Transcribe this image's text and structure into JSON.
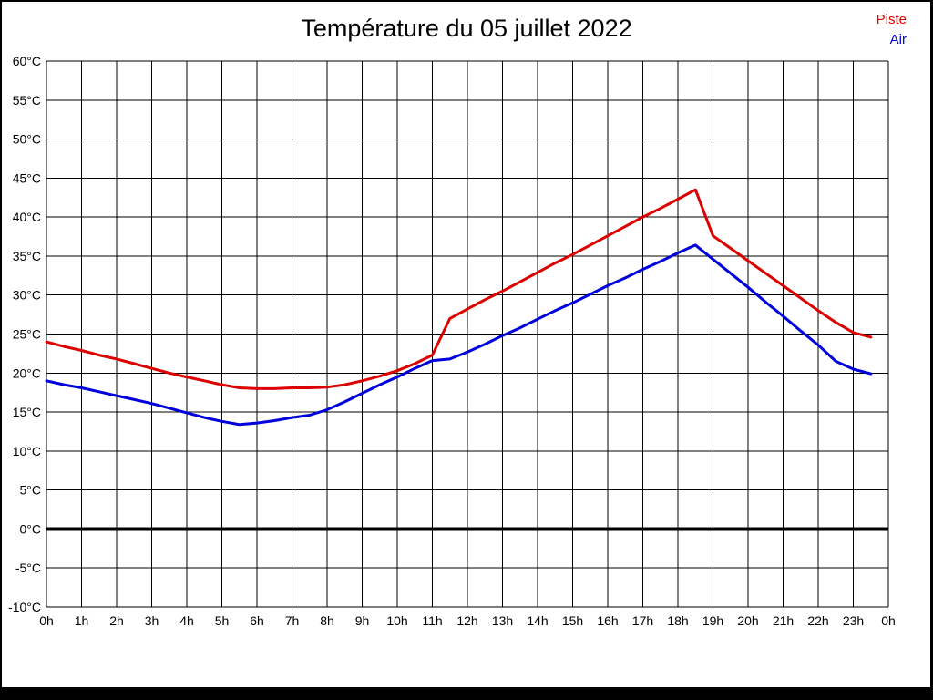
{
  "window": {
    "background": "#ffffff",
    "frame_color": "#000000"
  },
  "chart_data": {
    "type": "line",
    "title": "Température du 05 juillet 2022",
    "xlabel": "",
    "ylabel": "",
    "xlim": [
      0,
      24
    ],
    "ylim": [
      -10,
      60
    ],
    "grid": true,
    "grid_color": "#000000",
    "axis_color": "#000000",
    "zero_line": {
      "value": 0,
      "color": "#000000",
      "width": 4
    },
    "legend_position": "top-right",
    "x_tick_hours": [
      0,
      1,
      2,
      3,
      4,
      5,
      6,
      7,
      8,
      9,
      10,
      11,
      12,
      13,
      14,
      15,
      16,
      17,
      18,
      19,
      20,
      21,
      22,
      23,
      24
    ],
    "x_tick_labels": [
      "0h",
      "1h",
      "2h",
      "3h",
      "4h",
      "5h",
      "6h",
      "7h",
      "8h",
      "9h",
      "10h",
      "11h",
      "12h",
      "13h",
      "14h",
      "15h",
      "16h",
      "17h",
      "18h",
      "19h",
      "20h",
      "21h",
      "22h",
      "23h",
      "0h"
    ],
    "y_tick_values": [
      60,
      55,
      50,
      45,
      40,
      35,
      30,
      25,
      20,
      15,
      10,
      5,
      0,
      -5,
      -10
    ],
    "y_tick_labels": [
      "60°C",
      "55°C",
      "50°C",
      "45°C",
      "40°C",
      "35°C",
      "30°C",
      "25°C",
      "20°C",
      "15°C",
      "10°C",
      "5°C",
      "0°C",
      "-5°C",
      "-10°C"
    ],
    "x": [
      0,
      0.5,
      1,
      1.5,
      2,
      2.5,
      3,
      3.5,
      4,
      4.5,
      5,
      5.5,
      6,
      6.5,
      7,
      7.5,
      8,
      8.5,
      9,
      9.5,
      10,
      10.5,
      11,
      11.5,
      12,
      12.5,
      13,
      13.5,
      14,
      14.5,
      15,
      15.5,
      16,
      16.5,
      17,
      17.5,
      18,
      18.5,
      19,
      19.5,
      20,
      20.5,
      21,
      21.5,
      22,
      22.5,
      23,
      23.5
    ],
    "series": [
      {
        "name": "Piste",
        "color": "#dd0000",
        "values": [
          24.0,
          23.4,
          22.9,
          22.3,
          21.8,
          21.2,
          20.6,
          20.0,
          19.5,
          19.0,
          18.5,
          18.1,
          18.0,
          18.0,
          18.1,
          18.1,
          18.2,
          18.5,
          19.0,
          19.6,
          20.3,
          21.2,
          22.3,
          27.0,
          28.2,
          29.4,
          30.5,
          31.7,
          32.9,
          34.1,
          35.2,
          36.4,
          37.6,
          38.8,
          40.0,
          41.1,
          42.3,
          43.5,
          37.6,
          36.0,
          34.4,
          32.8,
          31.2,
          29.6,
          28.0,
          26.5,
          25.2,
          24.6
        ]
      },
      {
        "name": "Air",
        "color": "#0000dd",
        "values": [
          19.0,
          18.5,
          18.1,
          17.6,
          17.1,
          16.6,
          16.1,
          15.5,
          14.9,
          14.3,
          13.8,
          13.4,
          13.6,
          13.9,
          14.3,
          14.6,
          15.3,
          16.3,
          17.4,
          18.5,
          19.5,
          20.6,
          21.6,
          21.8,
          22.7,
          23.7,
          24.8,
          25.8,
          26.9,
          28.0,
          29.0,
          30.1,
          31.2,
          32.2,
          33.3,
          34.3,
          35.4,
          36.4,
          34.6,
          32.8,
          31.0,
          29.1,
          27.3,
          25.4,
          23.6,
          21.5,
          20.5,
          19.9
        ]
      }
    ]
  }
}
